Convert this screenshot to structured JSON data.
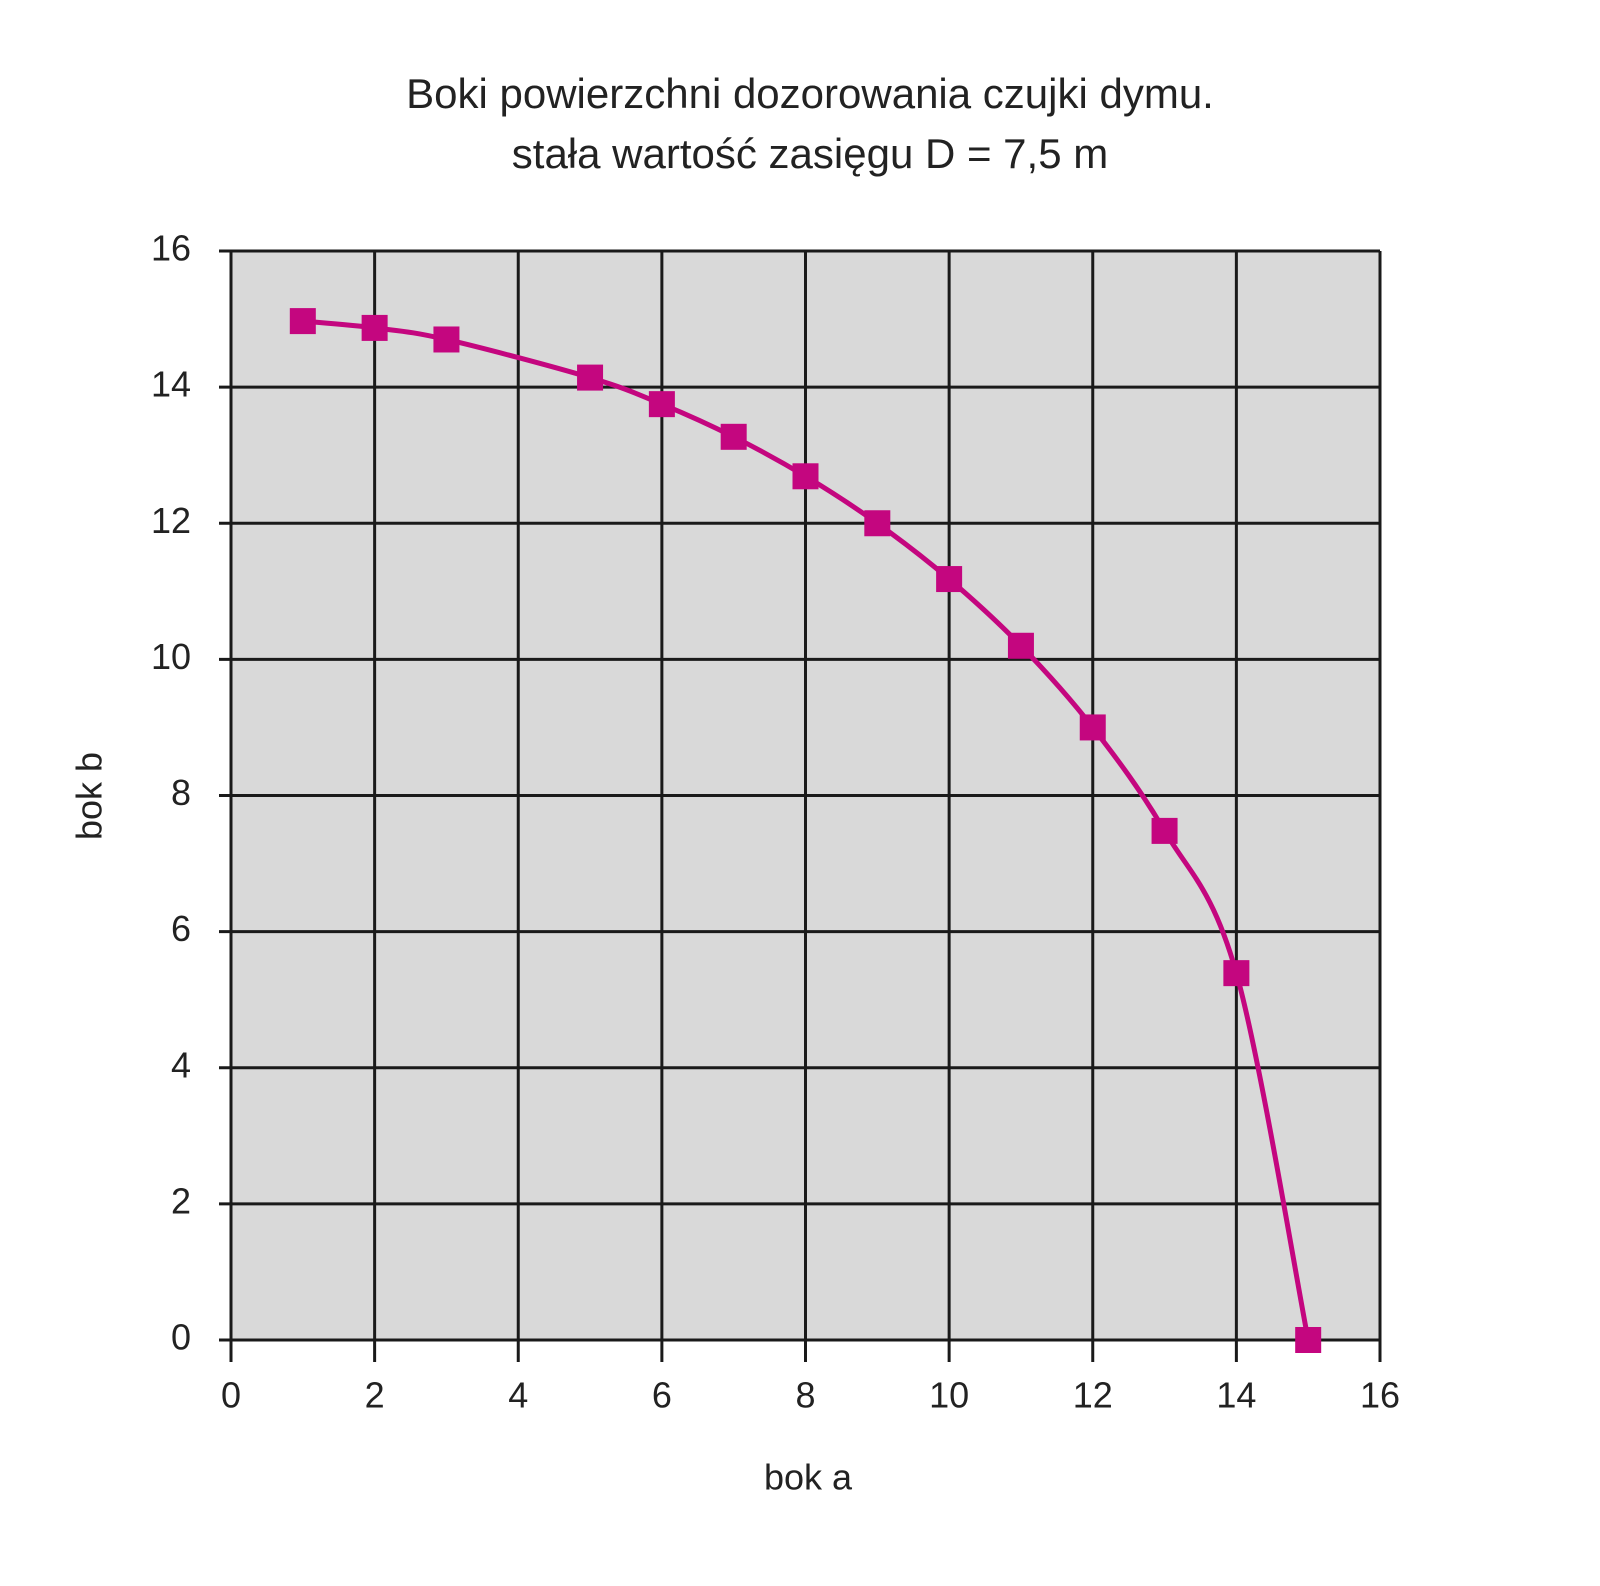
{
  "chart_data": {
    "type": "line",
    "title": "Boki powierzchni dozorowania czujki dymu.",
    "subtitle": "stała wartość zasięgu D = 7,5 m",
    "x_label": "bok a",
    "y_label": "bok b",
    "series": [
      {
        "name": "bok b",
        "color": "#c4067f",
        "x": [
          1,
          2,
          3,
          5,
          6,
          7,
          8,
          9,
          10,
          11,
          12,
          13,
          14,
          15
        ],
        "values": [
          14.97,
          14.87,
          14.7,
          14.14,
          13.75,
          13.27,
          12.69,
          12.0,
          11.18,
          10.2,
          9.0,
          7.48,
          5.39,
          0
        ]
      }
    ],
    "xlim": [
      0,
      16
    ],
    "xticks": [
      0,
      2,
      4,
      6,
      8,
      10,
      12,
      14,
      16
    ],
    "ylim": [
      0,
      16
    ],
    "yticks": [
      0,
      2,
      4,
      6,
      8,
      10,
      12,
      14,
      16
    ],
    "grid": true,
    "plot_background": "#d9d9d9"
  }
}
